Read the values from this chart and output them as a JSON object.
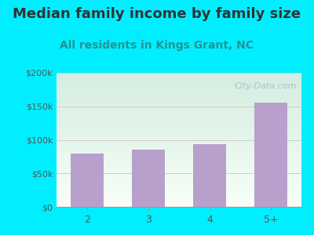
{
  "title": "Median family income by family size",
  "subtitle": "All residents in Kings Grant, NC",
  "categories": [
    "2",
    "3",
    "4",
    "5+"
  ],
  "values": [
    80000,
    85000,
    93000,
    155000
  ],
  "bar_color": "#b8a0cc",
  "background_color": "#00eeff",
  "plot_bg_color_top": "#d4ede0",
  "plot_bg_color_bottom": "#f8fff8",
  "title_color": "#333333",
  "subtitle_color": "#2a9090",
  "tick_color": "#555555",
  "grid_color": "#cccccc",
  "ylim": [
    0,
    200000
  ],
  "yticks": [
    0,
    50000,
    100000,
    150000,
    200000
  ],
  "ytick_labels": [
    "$0",
    "$50k",
    "$100k",
    "$150k",
    "$200k"
  ],
  "title_fontsize": 13,
  "subtitle_fontsize": 10,
  "watermark_text": "⌘City-Data.com",
  "watermark_color": "#aabbcc"
}
